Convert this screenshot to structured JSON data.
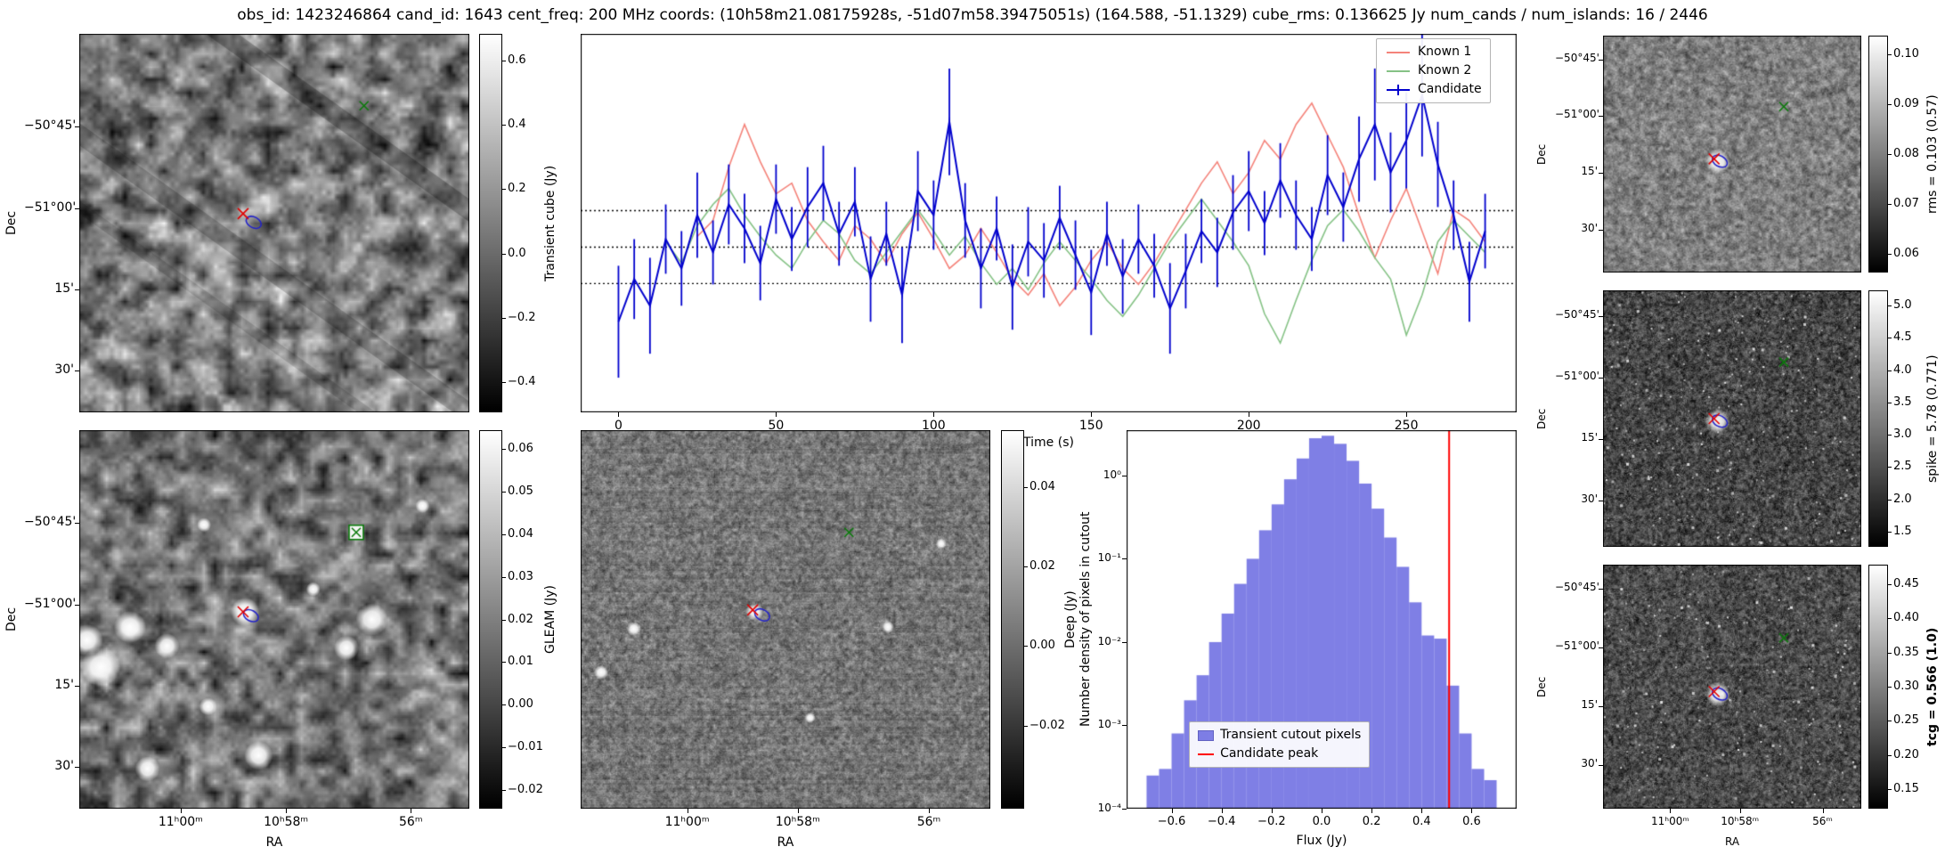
{
  "title": "obs_id: 1423246864 cand_id: 1643 cent_freq: 200 MHz coords: (10h58m21.08175928s, -51d07m58.39475051s) (164.588, -51.1329) cube_rms: 0.136625 Jy num_cands / num_islands: 16 / 2446",
  "axes": {
    "dec": "Dec",
    "ra": "RA"
  },
  "ra_ticks": [
    "11ʰ00ᵐ",
    "10ʰ58ᵐ",
    "56ᵐ"
  ],
  "dec_ticks": [
    "−50°45'",
    "−51°00'",
    "15'",
    "30'"
  ],
  "colorbars": {
    "transient": {
      "label": "Transient cube (Jy)",
      "ticks": [
        "0.6",
        "0.4",
        "0.2",
        "0.0",
        "−0.2",
        "−0.4"
      ]
    },
    "gleam": {
      "label": "GLEAM (Jy)",
      "ticks": [
        "0.06",
        "0.05",
        "0.04",
        "0.03",
        "0.02",
        "0.01",
        "0.00",
        "−0.01",
        "−0.02"
      ]
    },
    "deep": {
      "label": "Deep (Jy)",
      "ticks": [
        "0.04",
        "0.02",
        "0.00",
        "−0.02"
      ]
    },
    "rms": {
      "label": "rms = 0.103 (0.57)",
      "ticks": [
        "0.10",
        "0.09",
        "0.08",
        "0.07",
        "0.06"
      ]
    },
    "spike": {
      "label": "spike = 5.78 (0.771)",
      "ticks": [
        "5.0",
        "4.5",
        "4.0",
        "3.5",
        "3.0",
        "2.5",
        "2.0",
        "1.5"
      ]
    },
    "tcg": {
      "label": "tcg = 0.566 (1.0)",
      "bold": true,
      "ticks": [
        "0.45",
        "0.40",
        "0.35",
        "0.30",
        "0.25",
        "0.20",
        "0.15"
      ]
    }
  },
  "panels": {
    "transient": {
      "markers": {
        "red_x": [
          0.42,
          0.475
        ],
        "green_x": [
          0.73,
          0.19
        ],
        "contour": [
          0.447,
          0.498
        ]
      },
      "style": {
        "res": 30,
        "base": 125,
        "contrast": 150,
        "grain": 0.25,
        "streaks": true
      }
    },
    "gleam": {
      "markers": {
        "red_x": [
          0.42,
          0.48
        ],
        "contour": [
          0.44,
          0.49
        ],
        "green_box": [
          0.71,
          0.27
        ]
      },
      "style": {
        "res": 36,
        "base": 116,
        "contrast": 125,
        "grain": 0.2,
        "sources": [
          [
            0.425,
            0.48,
            8
          ],
          [
            0.13,
            0.52,
            9
          ],
          [
            0.055,
            0.625,
            11
          ],
          [
            0.225,
            0.57,
            7
          ],
          [
            0.02,
            0.555,
            9
          ],
          [
            0.75,
            0.5,
            9
          ],
          [
            0.685,
            0.575,
            7
          ],
          [
            0.46,
            0.86,
            8
          ],
          [
            0.175,
            0.895,
            7
          ],
          [
            0.33,
            0.73,
            5
          ],
          [
            0.6,
            0.42,
            4
          ],
          [
            0.88,
            0.2,
            4
          ],
          [
            0.32,
            0.25,
            4
          ]
        ]
      }
    },
    "deep": {
      "markers": {
        "red_x": [
          0.42,
          0.475
        ],
        "contour": [
          0.443,
          0.488
        ],
        "green_x": [
          0.655,
          0.27
        ]
      },
      "style": {
        "res": 130,
        "base": 120,
        "contrast": 85,
        "grain": 0.45,
        "hstripes": true,
        "sources": [
          [
            0.425,
            0.48,
            5
          ],
          [
            0.13,
            0.525,
            4
          ],
          [
            0.75,
            0.52,
            3.5
          ],
          [
            0.56,
            0.76,
            3
          ],
          [
            0.05,
            0.64,
            4
          ],
          [
            0.88,
            0.3,
            3
          ]
        ]
      }
    },
    "rms": {
      "markers": {
        "red_x": [
          0.43,
          0.52
        ],
        "contour": [
          0.452,
          0.53
        ],
        "green_x": [
          0.7,
          0.3
        ]
      },
      "style": {
        "res": 70,
        "base": 128,
        "contrast": 90,
        "grain": 0.4,
        "white_at_marker": true
      }
    },
    "spike": {
      "markers": {
        "red_x": [
          0.43,
          0.5
        ],
        "contour": [
          0.452,
          0.51
        ],
        "green_x": [
          0.7,
          0.28
        ]
      },
      "style": {
        "res": 100,
        "base": 70,
        "contrast": 110,
        "grain": 0.5,
        "speckle": 260,
        "white_at_marker": true
      }
    },
    "tcg": {
      "markers": {
        "red_x": [
          0.43,
          0.52
        ],
        "contour": [
          0.452,
          0.53
        ],
        "green_x": [
          0.7,
          0.3
        ]
      },
      "style": {
        "res": 100,
        "base": 76,
        "contrast": 105,
        "grain": 0.5,
        "speckle": 210,
        "white_at_marker": true
      }
    }
  },
  "chart_data": [
    {
      "type": "line",
      "title": "",
      "xlabel": "Time (s)",
      "ylabel": "",
      "xlim": [
        -12,
        285
      ],
      "ylim": [
        -0.62,
        0.8
      ],
      "xticks": [
        0,
        50,
        100,
        150,
        200,
        250
      ],
      "hlines": [
        0.136625,
        0,
        -0.136625
      ],
      "legend_position": "upper right",
      "x": [
        0,
        5,
        10,
        15,
        20,
        25,
        30,
        35,
        40,
        45,
        50,
        55,
        60,
        65,
        70,
        75,
        80,
        85,
        90,
        95,
        100,
        105,
        110,
        115,
        120,
        125,
        130,
        135,
        140,
        145,
        150,
        155,
        160,
        165,
        170,
        175,
        180,
        185,
        190,
        195,
        200,
        205,
        210,
        215,
        220,
        225,
        230,
        235,
        240,
        245,
        250,
        255,
        260,
        265,
        270,
        275
      ],
      "series": [
        {
          "name": "Known 1",
          "color": "#f4837a",
          "values": [
            null,
            null,
            null,
            null,
            null,
            0.04,
            0.1,
            0.3,
            0.46,
            0.32,
            0.2,
            0.24,
            0.1,
            0.02,
            -0.05,
            0.08,
            0.03,
            -0.06,
            0.05,
            0.13,
            0.03,
            -0.08,
            -0.03,
            0.07,
            -0.02,
            -0.12,
            -0.18,
            -0.1,
            -0.22,
            -0.15,
            -0.05,
            0.02,
            -0.08,
            -0.14,
            -0.06,
            0.04,
            0.14,
            0.24,
            0.32,
            0.2,
            0.28,
            0.4,
            0.33,
            0.46,
            0.54,
            0.42,
            0.3,
            0.12,
            -0.04,
            0.1,
            0.22,
            0.06,
            -0.1,
            0.14,
            0.1,
            0.02
          ]
        },
        {
          "name": "Known 2",
          "color": "#85c285",
          "values": [
            null,
            null,
            null,
            0.02,
            -0.06,
            0.08,
            0.16,
            0.22,
            0.12,
            0.04,
            -0.03,
            -0.08,
            0.02,
            0.1,
            0.05,
            -0.05,
            -0.1,
            -0.02,
            0.06,
            0.14,
            0.06,
            -0.03,
            0.04,
            -0.06,
            -0.14,
            -0.08,
            -0.16,
            -0.06,
            0.02,
            -0.05,
            -0.12,
            -0.2,
            -0.26,
            -0.18,
            -0.08,
            0.02,
            0.1,
            0.18,
            0.1,
            0.02,
            -0.07,
            -0.25,
            -0.36,
            -0.2,
            -0.05,
            0.08,
            0.14,
            0.06,
            -0.04,
            -0.12,
            -0.33,
            -0.18,
            0.02,
            0.1,
            0.04,
            -0.02
          ]
        },
        {
          "name": "Candidate",
          "color": "#0000cd",
          "values": [
            -0.28,
            -0.12,
            -0.22,
            0.03,
            -0.08,
            0.12,
            -0.02,
            0.16,
            0.07,
            -0.06,
            0.18,
            0.03,
            0.15,
            0.24,
            0.05,
            0.17,
            -0.12,
            0.05,
            -0.18,
            0.21,
            0.12,
            0.47,
            0.1,
            -0.08,
            0.07,
            -0.15,
            0.02,
            -0.05,
            0.11,
            -0.03,
            -0.17,
            0.05,
            -0.11,
            0.03,
            -0.07,
            -0.23,
            -0.09,
            0.06,
            -0.02,
            0.13,
            0.21,
            0.09,
            0.25,
            0.12,
            0.03,
            0.27,
            0.15,
            0.33,
            0.46,
            0.28,
            0.4,
            0.57,
            0.31,
            0.12,
            -0.13,
            0.06
          ],
          "errors": [
            0.21,
            0.15,
            0.18,
            0.13,
            0.14,
            0.16,
            0.12,
            0.15,
            0.13,
            0.14,
            0.13,
            0.12,
            0.15,
            0.14,
            0.12,
            0.13,
            0.16,
            0.12,
            0.18,
            0.15,
            0.13,
            0.2,
            0.14,
            0.15,
            0.12,
            0.16,
            0.13,
            0.14,
            0.12,
            0.13,
            0.16,
            0.12,
            0.14,
            0.13,
            0.12,
            0.17,
            0.14,
            0.12,
            0.13,
            0.14,
            0.15,
            0.12,
            0.14,
            0.13,
            0.12,
            0.15,
            0.13,
            0.16,
            0.21,
            0.15,
            0.18,
            0.23,
            0.16,
            0.13,
            0.15,
            0.14
          ]
        }
      ]
    },
    {
      "type": "bar",
      "title": "",
      "xlabel": "Flux (Jy)",
      "ylabel": "Number density of pixels in cutout",
      "log_y": true,
      "xlim": [
        -0.78,
        0.78
      ],
      "ylim": [
        0.0001,
        3.5
      ],
      "xticks": [
        -0.6,
        -0.4,
        -0.2,
        0,
        0.2,
        0.4,
        0.6
      ],
      "ytick_values": [
        1,
        0.1,
        0.01,
        0.001,
        0.0001
      ],
      "ytick_labels": [
        "10⁰",
        "10⁻¹",
        "10⁻²",
        "10⁻³",
        "10⁻⁴"
      ],
      "bin_width": 0.05,
      "bin_centers": [
        -0.675,
        -0.625,
        -0.575,
        -0.525,
        -0.475,
        -0.425,
        -0.375,
        -0.325,
        -0.275,
        -0.225,
        -0.175,
        -0.125,
        -0.075,
        -0.025,
        0.025,
        0.075,
        0.125,
        0.175,
        0.225,
        0.275,
        0.325,
        0.375,
        0.425,
        0.475,
        0.525,
        0.575,
        0.625,
        0.675
      ],
      "values": [
        0.00025,
        0.0003,
        0.0008,
        0.002,
        0.004,
        0.01,
        0.022,
        0.05,
        0.1,
        0.22,
        0.45,
        0.9,
        1.6,
        2.8,
        3.0,
        2.4,
        1.5,
        0.8,
        0.4,
        0.18,
        0.08,
        0.03,
        0.012,
        0.011,
        0.003,
        0.0008,
        0.0003,
        0.00022
      ],
      "fill_color": "#6969e1",
      "vline": {
        "x": 0.51,
        "color": "#ff0000",
        "label": "Candidate peak"
      },
      "legend": [
        "Transient cutout pixels",
        "Candidate peak"
      ]
    }
  ]
}
